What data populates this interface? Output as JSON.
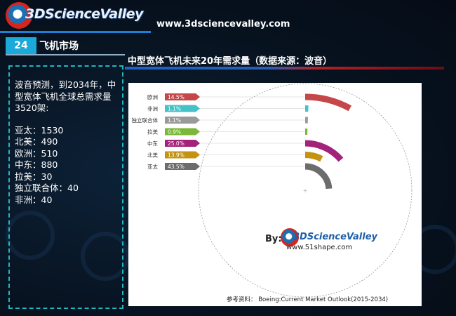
{
  "header": {
    "logo_text": "3DScienceValley",
    "site_url": "www.3dsciencevalley.com"
  },
  "section": {
    "number": "24",
    "label": "飞机市场"
  },
  "panel": {
    "intro": "波音预测，到2034年，中型宽体飞机全球总需求量3520架:",
    "stats": [
      "亚太：1530",
      "北美：490",
      "欧洲：510",
      "中东：880",
      "拉美：30",
      "独立联合体：40",
      "非洲：40"
    ]
  },
  "attribution": {
    "by": "By:",
    "logo_text": "3DScienceValley",
    "url": "www.51shape.com",
    "reference": "参考资料：  Boeing:Current Market Outlook(2015-2034)"
  },
  "chart_data": {
    "type": "radial-bar",
    "title": "中型宽体飞机未来20年需求量（数据来源：波音）",
    "categories": [
      "欧洲",
      "非洲",
      "独立联合体",
      "拉美",
      "中东",
      "北美",
      "亚太"
    ],
    "values": [
      14.5,
      1.1,
      1.1,
      0.9,
      25.0,
      13.9,
      43.5
    ],
    "labels": [
      "14.5%",
      "1.1%",
      "1.1%",
      "0.9%",
      "25.0%",
      "13.9%",
      "43.5%"
    ],
    "unit": "%",
    "colors": [
      "#c6474a",
      "#47c1c8",
      "#9a9a9a",
      "#7bb83a",
      "#a3237a",
      "#c39412",
      "#6c6c6c"
    ],
    "label_tag_color": "#555555"
  }
}
